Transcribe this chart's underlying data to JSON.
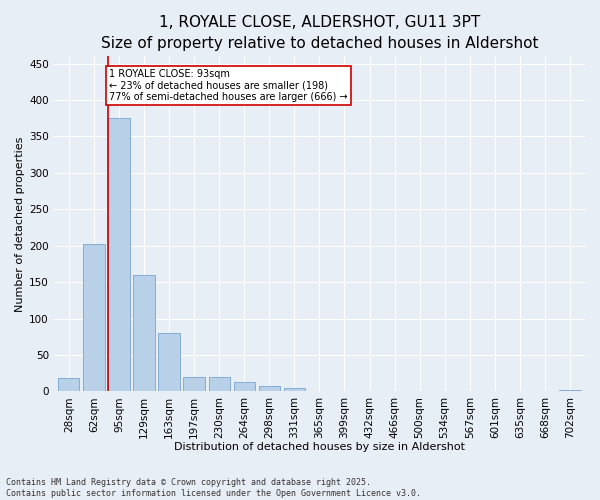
{
  "title": "1, ROYALE CLOSE, ALDERSHOT, GU11 3PT",
  "subtitle": "Size of property relative to detached houses in Aldershot",
  "xlabel": "Distribution of detached houses by size in Aldershot",
  "ylabel": "Number of detached properties",
  "categories": [
    "28sqm",
    "62sqm",
    "95sqm",
    "129sqm",
    "163sqm",
    "197sqm",
    "230sqm",
    "264sqm",
    "298sqm",
    "331sqm",
    "365sqm",
    "399sqm",
    "432sqm",
    "466sqm",
    "500sqm",
    "534sqm",
    "567sqm",
    "601sqm",
    "635sqm",
    "668sqm",
    "702sqm"
  ],
  "values": [
    18,
    202,
    375,
    160,
    80,
    20,
    20,
    13,
    7,
    4,
    1,
    0,
    0,
    0,
    0,
    1,
    0,
    0,
    0,
    0,
    2
  ],
  "bar_color": "#b8d0e8",
  "bar_edge_color": "#6699cc",
  "property_line_idx": 2,
  "annotation_text": "1 ROYALE CLOSE: 93sqm\n← 23% of detached houses are smaller (198)\n77% of semi-detached houses are larger (666) →",
  "annotation_box_color": "#ffffff",
  "annotation_box_edge": "#cc0000",
  "annotation_line_color": "#cc0000",
  "ylim": [
    0,
    460
  ],
  "yticks": [
    0,
    50,
    100,
    150,
    200,
    250,
    300,
    350,
    400,
    450
  ],
  "bg_color": "#e8eef5",
  "plot_bg_color": "#e8eef5",
  "footer": "Contains HM Land Registry data © Crown copyright and database right 2025.\nContains public sector information licensed under the Open Government Licence v3.0.",
  "title_fontsize": 11,
  "xlabel_fontsize": 8,
  "ylabel_fontsize": 8,
  "tick_fontsize": 7.5,
  "footer_fontsize": 6
}
